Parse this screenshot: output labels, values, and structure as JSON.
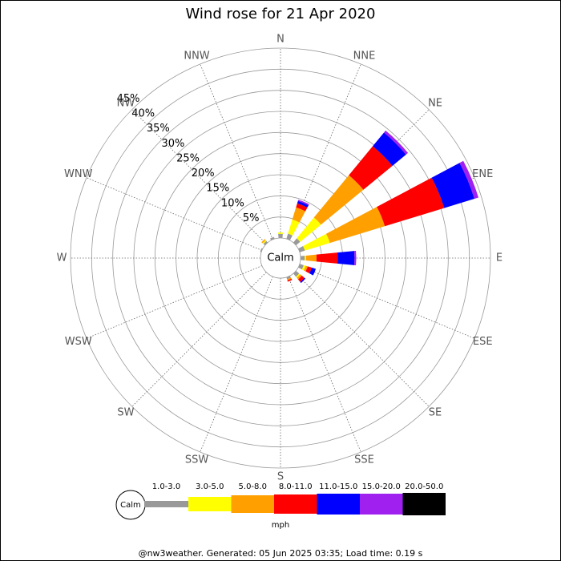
{
  "chart_data": {
    "type": "wind-rose",
    "title": "Wind rose for 21 Apr 2020",
    "calm_label": "Calm",
    "unit": "mph",
    "footer": "@nw3weather. Generated: 05 Jun 2025 03:35; Load time: 0.19 s",
    "categories": [
      "N",
      "NNE",
      "NE",
      "ENE",
      "E",
      "ESE",
      "SE",
      "SSE",
      "S",
      "SSW",
      "SW",
      "WSW",
      "W",
      "WNW",
      "NW",
      "NNW"
    ],
    "rlim": [
      0,
      45
    ],
    "rticks": [
      {
        "value": 5,
        "label": "5%"
      },
      {
        "value": 10,
        "label": "10%"
      },
      {
        "value": 15,
        "label": "15%"
      },
      {
        "value": 20,
        "label": "20%"
      },
      {
        "value": 25,
        "label": "25%"
      },
      {
        "value": 30,
        "label": "30%"
      },
      {
        "value": 35,
        "label": "35%"
      },
      {
        "value": 40,
        "label": "40%"
      },
      {
        "value": 45,
        "label": "45%"
      }
    ],
    "series": [
      {
        "name": "1.0-3.0",
        "color": "#999999",
        "values": [
          1,
          1.3,
          1.3,
          1.3,
          1,
          1,
          1,
          0.5,
          0,
          0,
          0,
          0,
          0,
          0.3,
          0.5,
          0.5
        ]
      },
      {
        "name": "3.0-5.0",
        "color": "#ffff00",
        "values": [
          0.3,
          3.5,
          6.4,
          6.2,
          0.3,
          0.5,
          0.3,
          0,
          0,
          0,
          0,
          0,
          0,
          0,
          0.3,
          0
        ]
      },
      {
        "name": "5.0-8.0",
        "color": "#ffa000",
        "values": [
          0,
          3,
          13,
          13.6,
          2.5,
          0.5,
          0.5,
          0.3,
          0,
          0,
          0,
          0,
          0,
          0,
          0.3,
          0
        ]
      },
      {
        "name": "8.0-11.0",
        "color": "#ff0000",
        "values": [
          0,
          1,
          8.9,
          14.7,
          5,
          1,
          0.8,
          0.3,
          0,
          0,
          0,
          0,
          0,
          0,
          0,
          0
        ]
      },
      {
        "name": "11.0-15.0",
        "color": "#0000ff",
        "values": [
          0,
          0.6,
          4.2,
          7.5,
          4,
          1,
          0.3,
          0,
          0,
          0,
          0,
          0,
          0,
          0,
          0,
          0
        ]
      },
      {
        "name": "15.0-20.0",
        "color": "#a020f0",
        "values": [
          0,
          0.3,
          0.6,
          1,
          0.4,
          0,
          0,
          0,
          0,
          0,
          0,
          0,
          0,
          0,
          0,
          0
        ]
      },
      {
        "name": "20.0-50.0",
        "color": "#000000",
        "values": [
          0,
          0,
          0,
          0,
          0,
          0,
          0,
          0,
          0,
          0,
          0,
          0,
          0,
          0,
          0,
          0
        ]
      }
    ]
  }
}
